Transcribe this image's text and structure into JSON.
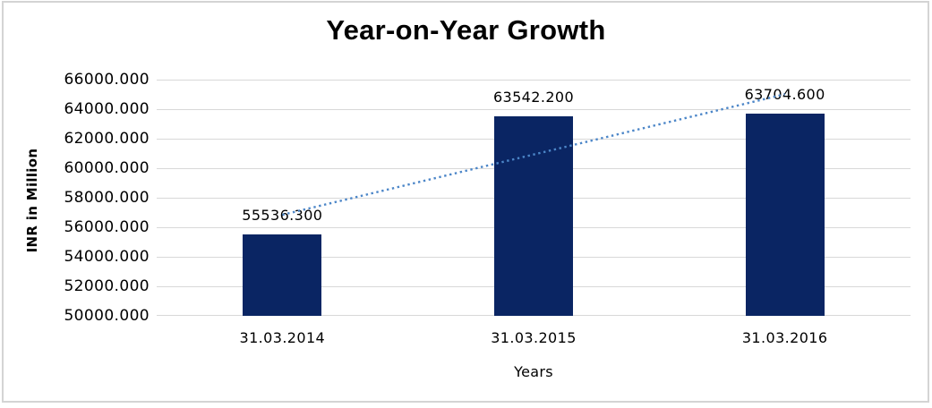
{
  "chart_data": {
    "type": "bar",
    "title": "Year-on-Year Growth",
    "xlabel": "Years",
    "ylabel": "INR in Million",
    "categories": [
      "31.03.2014",
      "31.03.2015",
      "31.03.2016"
    ],
    "values": [
      55536.3,
      63542.2,
      63704.6
    ],
    "data_labels": [
      "55536.300",
      "63542.200",
      "63704.600"
    ],
    "ylim": [
      50000,
      66000
    ],
    "yticks": [
      {
        "label": "50000.000",
        "value": 50000
      },
      {
        "label": "52000.000",
        "value": 52000
      },
      {
        "label": "54000.000",
        "value": 54000
      },
      {
        "label": "56000.000",
        "value": 56000
      },
      {
        "label": "58000.000",
        "value": 58000
      },
      {
        "label": "60000.000",
        "value": 60000
      },
      {
        "label": "62000.000",
        "value": 62000
      },
      {
        "label": "64000.000",
        "value": 64000
      },
      {
        "label": "66000.000",
        "value": 66000
      }
    ],
    "grid": "horizontal-only",
    "legend": "none",
    "bar_color": "#0A2563",
    "trendline": {
      "type": "linear",
      "style": "dotted",
      "color": "#4C86C8",
      "endpoints": [
        {
          "category": "31.03.2014",
          "value": 56843.5
        },
        {
          "category": "31.03.2016",
          "value": 65011.9
        }
      ]
    },
    "colors": {
      "gridline": "#D8D8D8",
      "frame": "#D4D4D4",
      "text": "#000000"
    }
  }
}
